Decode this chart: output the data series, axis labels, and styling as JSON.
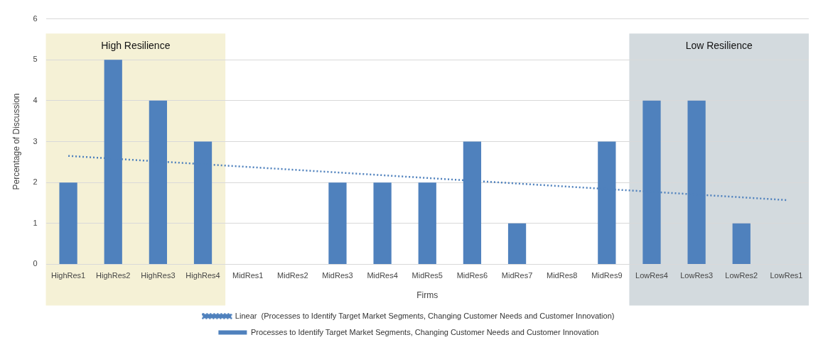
{
  "chart_data": {
    "type": "bar",
    "xlabel": "Firms",
    "ylabel": "Percentage of Discussion",
    "categories": [
      "HighRes1",
      "HighRes2",
      "HighRes3",
      "HighRes4",
      "MidRes1",
      "MidRes2",
      "MidRes3",
      "MidRes4",
      "MidRes5",
      "MidRes6",
      "MidRes7",
      "MidRes8",
      "MidRes9",
      "LowRes4",
      "LowRes3",
      "LowRes2",
      "LowRes1"
    ],
    "series": [
      {
        "name": "Processes to Identify Target Market Segments, Changing Customer Needs and Customer Innovation",
        "color": "#4f81bd",
        "values": [
          2,
          5,
          4,
          3,
          0,
          0,
          2,
          2,
          2,
          3,
          1,
          0,
          3,
          4,
          4,
          1,
          0
        ]
      },
      {
        "type": "line",
        "name": "Linear  (Processes to Identify Target Market Segments, Changing Customer Needs and Customer Innovation)",
        "color": "#4f81bd",
        "line_style": "dotted",
        "marker": "none",
        "x": [
          "HighRes1",
          "LowRes1"
        ],
        "values": [
          2.65,
          1.57
        ]
      }
    ],
    "ylim": [
      0,
      6
    ],
    "yticks": [
      0,
      1,
      2,
      3,
      4,
      5,
      6
    ],
    "grid": "y",
    "legend": "bottom",
    "bands": [
      {
        "axis": "x",
        "from": "HighRes1",
        "to": "HighRes4",
        "label": "High Resilience",
        "color": "#f5f1d6"
      },
      {
        "axis": "x",
        "from": "LowRes4",
        "to": "LowRes1",
        "label": "Low Resilience",
        "color": "#d3dade"
      }
    ]
  }
}
